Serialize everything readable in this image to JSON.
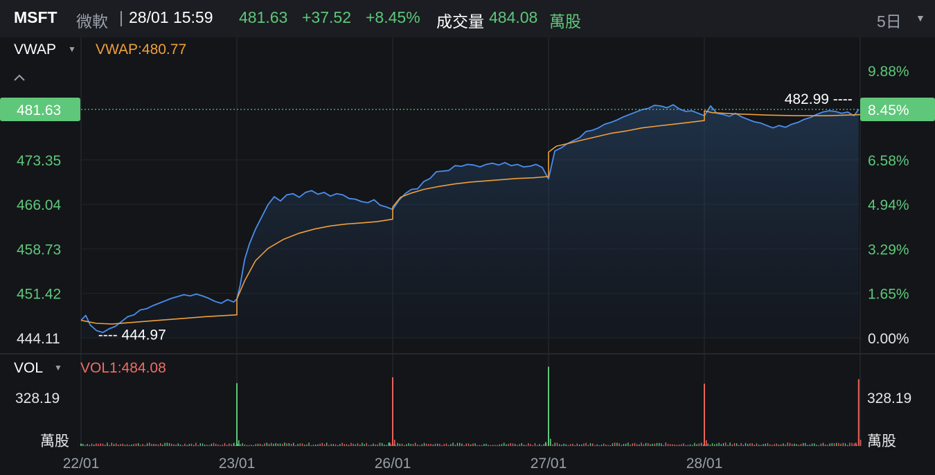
{
  "header": {
    "symbol": "MSFT",
    "name": "微軟",
    "separator": "|",
    "datetime": "28/01 15:59",
    "price": "481.63",
    "change": "+37.52",
    "change_pct": "+8.45%",
    "volume_label": "成交量",
    "volume_value": "484.08",
    "volume_unit": "萬股",
    "period": "5日",
    "period_caret": "▼"
  },
  "colors": {
    "up": "#5fc77a",
    "down": "#e8645a",
    "price_line": "#4a8ff0",
    "vwap_line": "#f0a03a",
    "vol_label": "#ee6e64"
  },
  "chart_data": [
    {
      "type": "line",
      "indicator_label": "VWAP",
      "indicator_caret": "▼",
      "indicator_value": "VWAP:480.77",
      "collapse_icon": "chevron-up-icon",
      "current_price_tag": "481.63",
      "current_pct_tag": "8.45%",
      "left_ticks": [
        "473.35",
        "466.04",
        "458.73",
        "451.42",
        "444.11"
      ],
      "left_tick_values": [
        473.35,
        466.04,
        458.73,
        451.42,
        444.11
      ],
      "right_ticks": [
        "9.88%",
        "8.45%",
        "6.58%",
        "4.94%",
        "3.29%",
        "1.65%",
        "0.00%"
      ],
      "x_labels": [
        "22/01",
        "23/01",
        "26/01",
        "27/01",
        "28/01"
      ],
      "ylim": [
        444.11,
        488.0
      ],
      "high_label": "482.99 ----",
      "low_label": "---- 444.97",
      "high": 482.99,
      "low": 444.97,
      "series": [
        {
          "role": "price",
          "x": [
            0,
            0.03,
            0.06,
            0.1,
            0.14,
            0.18,
            0.22,
            0.26,
            0.3,
            0.34,
            0.38,
            0.42,
            0.46,
            0.5,
            0.54,
            0.58,
            0.62,
            0.66,
            0.7,
            0.74,
            0.78,
            0.82,
            0.86,
            0.9,
            0.94,
            0.98,
            1.0,
            1.0,
            1.02,
            1.05,
            1.08,
            1.12,
            1.16,
            1.2,
            1.24,
            1.28,
            1.32,
            1.36,
            1.4,
            1.44,
            1.48,
            1.52,
            1.56,
            1.6,
            1.64,
            1.68,
            1.72,
            1.76,
            1.8,
            1.84,
            1.88,
            1.92,
            1.96,
            2.0,
            2.0,
            2.04,
            2.08,
            2.12,
            2.16,
            2.2,
            2.24,
            2.28,
            2.32,
            2.36,
            2.4,
            2.44,
            2.48,
            2.52,
            2.56,
            2.6,
            2.64,
            2.68,
            2.72,
            2.76,
            2.8,
            2.84,
            2.88,
            2.92,
            2.96,
            3.0,
            3.0,
            3.04,
            3.08,
            3.12,
            3.16,
            3.2,
            3.24,
            3.28,
            3.32,
            3.36,
            3.4,
            3.44,
            3.48,
            3.52,
            3.56,
            3.6,
            3.64,
            3.68,
            3.72,
            3.76,
            3.8,
            3.84,
            3.88,
            3.92,
            3.96,
            4.0,
            4.0,
            4.04,
            4.08,
            4.12,
            4.16,
            4.2,
            4.24,
            4.28,
            4.32,
            4.36,
            4.4,
            4.44,
            4.48,
            4.52,
            4.56,
            4.6,
            4.64,
            4.68,
            4.72,
            4.76,
            4.8,
            4.84,
            4.88,
            4.92,
            4.96,
            4.99
          ],
          "y": [
            447.0,
            447.8,
            446.2,
            445.3,
            445.0,
            445.6,
            446.0,
            446.8,
            447.6,
            447.9,
            448.7,
            448.9,
            449.4,
            449.8,
            450.2,
            450.6,
            450.9,
            451.2,
            451.0,
            451.3,
            451.0,
            450.6,
            450.1,
            449.8,
            450.4,
            450.0,
            450.5,
            450.5,
            452.6,
            457.0,
            459.5,
            462.0,
            464.0,
            466.0,
            467.3,
            466.6,
            467.6,
            467.8,
            467.2,
            468.0,
            468.3,
            467.7,
            468.0,
            467.4,
            467.8,
            467.6,
            467.0,
            466.9,
            466.5,
            466.3,
            466.8,
            465.9,
            465.6,
            465.2,
            465.2,
            466.7,
            467.8,
            468.5,
            468.6,
            469.8,
            470.3,
            471.4,
            471.5,
            471.6,
            472.4,
            472.3,
            472.6,
            472.5,
            472.2,
            472.6,
            472.8,
            472.5,
            472.9,
            472.4,
            472.6,
            472.2,
            472.3,
            472.6,
            472.1,
            470.2,
            470.2,
            474.8,
            475.3,
            476.0,
            476.5,
            477.0,
            478.0,
            478.2,
            478.6,
            479.2,
            479.5,
            479.9,
            480.4,
            480.8,
            481.2,
            481.6,
            481.8,
            482.3,
            482.2,
            481.9,
            482.4,
            481.7,
            481.3,
            481.4,
            481.0,
            480.6,
            480.6,
            482.2,
            481.0,
            480.8,
            480.5,
            481.0,
            480.4,
            480.0,
            479.6,
            479.4,
            479.0,
            478.6,
            479.0,
            478.7,
            479.2,
            479.5,
            480.0,
            480.3,
            480.8,
            481.2,
            481.4,
            481.3,
            481.0,
            481.2,
            480.6,
            481.63
          ]
        },
        {
          "role": "vwap",
          "x": [
            0,
            0.1,
            0.2,
            0.4,
            0.6,
            0.8,
            1.0,
            1.0,
            1.05,
            1.12,
            1.2,
            1.3,
            1.4,
            1.5,
            1.6,
            1.7,
            1.8,
            1.9,
            2.0,
            2.0,
            2.05,
            2.12,
            2.2,
            2.3,
            2.4,
            2.5,
            2.6,
            2.7,
            2.8,
            2.9,
            3.0,
            3.0,
            3.05,
            3.12,
            3.2,
            3.3,
            3.4,
            3.5,
            3.6,
            3.7,
            3.8,
            3.9,
            4.0,
            4.0,
            4.05,
            4.2,
            4.4,
            4.6,
            4.8,
            5.0
          ],
          "y": [
            447.0,
            446.5,
            446.4,
            446.8,
            447.2,
            447.6,
            447.9,
            450.5,
            453.5,
            456.8,
            458.8,
            460.3,
            461.3,
            462.0,
            462.5,
            462.8,
            463.0,
            463.2,
            463.6,
            465.6,
            467.2,
            467.9,
            468.5,
            469.0,
            469.4,
            469.7,
            469.9,
            470.1,
            470.3,
            470.4,
            470.6,
            474.6,
            475.6,
            476.0,
            476.5,
            477.1,
            477.7,
            478.1,
            478.6,
            478.9,
            479.2,
            479.5,
            479.8,
            481.4,
            481.1,
            480.9,
            480.7,
            480.6,
            480.6,
            480.77
          ]
        }
      ]
    },
    {
      "type": "bar",
      "indicator_label": "VOL",
      "indicator_caret": "▼",
      "indicator_value": "VOL1:484.08",
      "left_tick": "328.19",
      "right_tick": "328.19",
      "unit_left": "萬股",
      "unit_right": "萬股",
      "ylim": [
        0,
        430
      ],
      "spikes": [
        {
          "x": 0.0,
          "value": 12,
          "dir": "up"
        },
        {
          "x": 1.0,
          "value": 325,
          "dir": "up"
        },
        {
          "x": 2.0,
          "value": 355,
          "dir": "down"
        },
        {
          "x": 3.0,
          "value": 410,
          "dir": "up"
        },
        {
          "x": 4.0,
          "value": 322,
          "dir": "down"
        },
        {
          "x": 4.99,
          "value": 345,
          "dir": "down"
        }
      ],
      "baseline_level": 3
    }
  ]
}
